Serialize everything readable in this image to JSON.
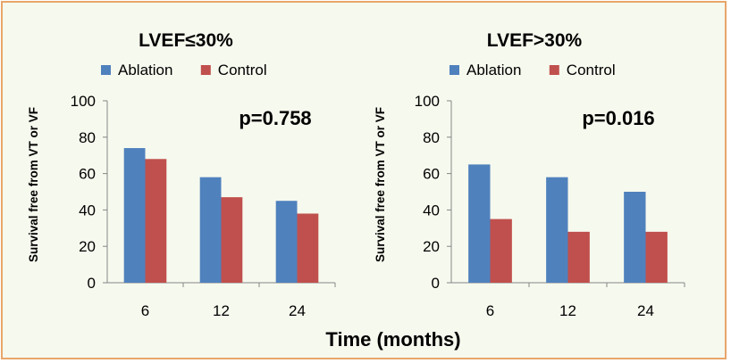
{
  "xlabel": "Time (months)",
  "ylabel": "Survival free from VT or VF",
  "colors": {
    "ablation": "#4f81bd",
    "control": "#c0504d",
    "border": "#e8a66a",
    "background": "#f6f9ee"
  },
  "chart_data": [
    {
      "type": "bar",
      "title": "LVEF≤30%",
      "annotation": "p=0.758",
      "categories": [
        "6",
        "12",
        "24"
      ],
      "series": [
        {
          "name": "Ablation",
          "values": [
            74,
            58,
            45
          ]
        },
        {
          "name": "Control",
          "values": [
            68,
            47,
            38
          ]
        }
      ],
      "ylim": [
        0,
        100
      ],
      "yticks": [
        0,
        20,
        40,
        60,
        80,
        100
      ],
      "grid": false,
      "legend": "top"
    },
    {
      "type": "bar",
      "title": "LVEF>30%",
      "annotation": "p=0.016",
      "categories": [
        "6",
        "12",
        "24"
      ],
      "series": [
        {
          "name": "Ablation",
          "values": [
            65,
            58,
            50
          ]
        },
        {
          "name": "Control",
          "values": [
            35,
            28,
            28
          ]
        }
      ],
      "ylim": [
        0,
        100
      ],
      "yticks": [
        0,
        20,
        40,
        60,
        80,
        100
      ],
      "grid": false,
      "legend": "top"
    }
  ]
}
